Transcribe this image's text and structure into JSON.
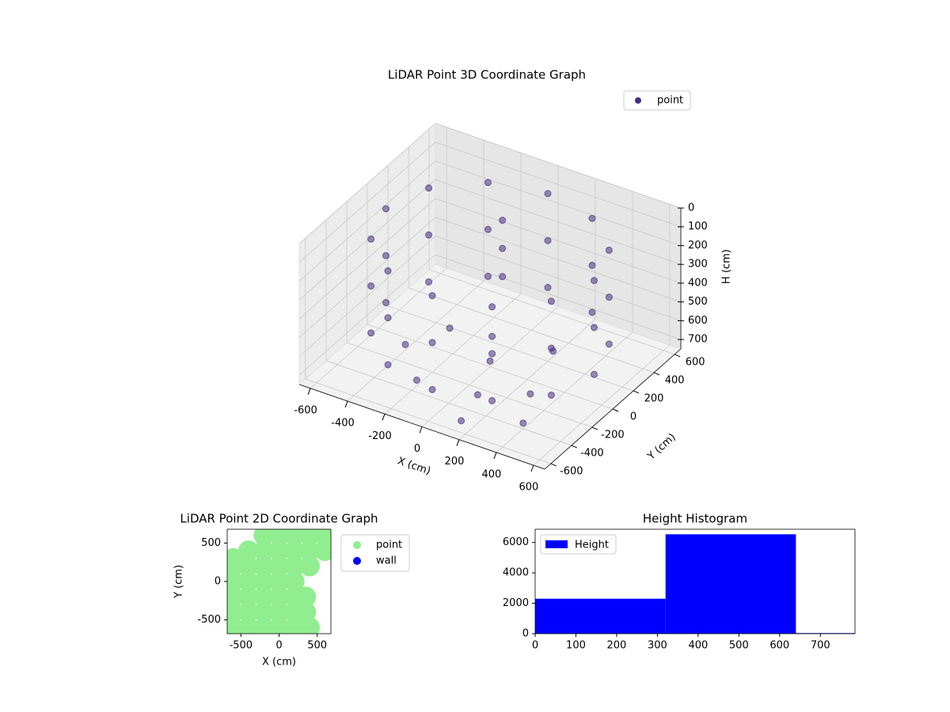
{
  "chart_data": [
    {
      "type": "scatter3d",
      "title": "LiDAR Point 3D Coordinate Graph",
      "xlabel": "X (cm)",
      "ylabel": "Y (cm)",
      "zlabel": "H (cm)",
      "xlim": [
        -660,
        660
      ],
      "ylim": [
        -660,
        660
      ],
      "zlim": [
        750,
        0
      ],
      "xticks": [
        -600,
        -400,
        -200,
        0,
        200,
        400,
        600
      ],
      "yticks": [
        -600,
        -400,
        -200,
        0,
        200,
        400,
        600
      ],
      "zticks": [
        0,
        100,
        200,
        300,
        400,
        500,
        600,
        700
      ],
      "grid": true,
      "legend": "upper right",
      "series": [
        {
          "name": "point",
          "color": "#46307e",
          "x": [
            560,
            485,
            280,
            0,
            -280,
            -485,
            -560,
            -485,
            -280,
            0,
            280,
            485,
            560,
            485,
            280,
            0,
            -280,
            -485,
            -560,
            -485,
            -280,
            0,
            280,
            485,
            560,
            485,
            280,
            0,
            -280,
            -485,
            -560,
            -485,
            -280,
            0,
            280,
            485,
            -400,
            -200,
            100,
            300,
            -100,
            200,
            0,
            -300,
            150,
            400,
            -100,
            -100,
            -100
          ],
          "y": [
            0,
            280,
            485,
            560,
            485,
            280,
            0,
            -280,
            -485,
            -560,
            -485,
            -280,
            0,
            280,
            485,
            560,
            485,
            280,
            0,
            -280,
            -485,
            -560,
            -485,
            -280,
            0,
            280,
            485,
            560,
            485,
            280,
            0,
            -280,
            -485,
            -560,
            -485,
            -280,
            -100,
            -350,
            -300,
            -150,
            200,
            250,
            0,
            150,
            -550,
            -400,
            300,
            300,
            300
          ],
          "z": [
            100,
            100,
            100,
            100,
            100,
            100,
            100,
            100,
            100,
            100,
            100,
            100,
            350,
            350,
            350,
            350,
            350,
            350,
            350,
            350,
            350,
            350,
            350,
            350,
            600,
            600,
            600,
            600,
            600,
            600,
            600,
            600,
            600,
            600,
            600,
            600,
            720,
            720,
            720,
            720,
            720,
            720,
            720,
            720,
            720,
            720,
            150,
            300,
            450
          ]
        }
      ]
    },
    {
      "type": "scatter",
      "title": "LiDAR Point 2D Coordinate Graph",
      "xlabel": "X (cm)",
      "ylabel": "Y (cm)",
      "xlim": [
        -680,
        680
      ],
      "ylim": [
        -680,
        680
      ],
      "xticks": [
        -500,
        0,
        500
      ],
      "yticks": [
        -500,
        0,
        500
      ],
      "legend": "outside right",
      "series": [
        {
          "name": "point",
          "color": "#90ee90",
          "x": [
            -200,
            0,
            200,
            400,
            600,
            -400,
            -200,
            0,
            200,
            400,
            600,
            -600,
            -400,
            -200,
            0,
            200,
            400,
            -600,
            -400,
            -200,
            0,
            200,
            -600,
            -400,
            -200,
            0,
            200,
            350,
            -600,
            -400,
            -200,
            0,
            200,
            350,
            -600,
            -400,
            -200,
            0,
            200,
            400,
            -600
          ],
          "y": [
            600,
            600,
            600,
            600,
            600,
            400,
            400,
            400,
            400,
            400,
            400,
            200,
            200,
            200,
            200,
            200,
            200,
            0,
            0,
            0,
            0,
            0,
            -200,
            -200,
            -200,
            -200,
            -200,
            -200,
            -400,
            -400,
            -400,
            -400,
            -400,
            -400,
            -600,
            -600,
            -600,
            -600,
            -600,
            -600,
            300
          ]
        },
        {
          "name": "wall",
          "color": "#0000ff",
          "x": [],
          "y": []
        }
      ]
    },
    {
      "type": "histogram",
      "title": "Height Histogram",
      "name": "Height",
      "color": "#0000ff",
      "bins": [
        0,
        320,
        640,
        960
      ],
      "values": [
        2300,
        6540,
        40
      ],
      "xlim": [
        0,
        785
      ],
      "ylim": [
        0,
        6870
      ],
      "xticks": [
        0,
        100,
        200,
        300,
        400,
        500,
        600,
        700
      ],
      "yticks": [
        0,
        2000,
        4000,
        6000
      ],
      "legend": "upper left"
    }
  ]
}
